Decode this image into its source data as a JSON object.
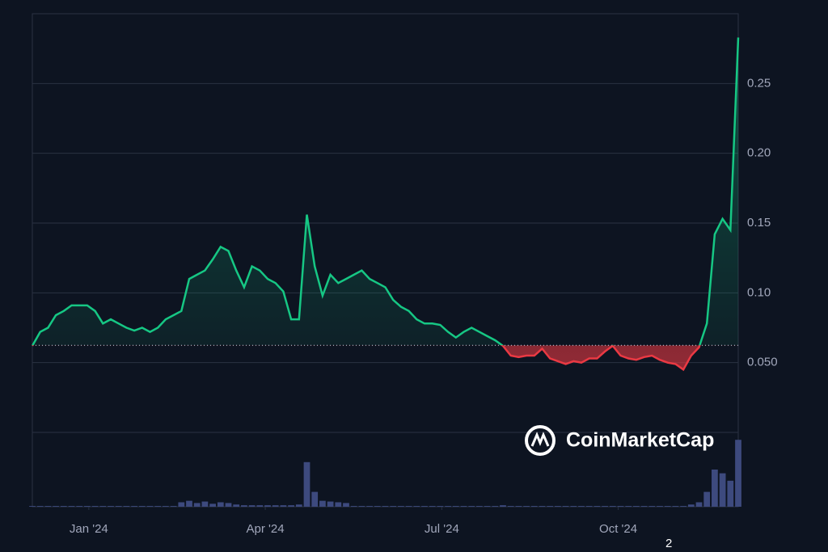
{
  "chart_data": {
    "type": "line",
    "watermark": "CoinMarketCap",
    "footnote": "2",
    "xlim": [
      0,
      90
    ],
    "xticks": [
      {
        "value": 7.2,
        "label": "Jan '24"
      },
      {
        "value": 29.7,
        "label": "Apr '24"
      },
      {
        "value": 52.2,
        "label": "Jul '24"
      },
      {
        "value": 74.7,
        "label": "Oct '24"
      }
    ],
    "ylim": [
      0,
      0.3
    ],
    "yticks": [
      {
        "value": 0.05,
        "label": "0.050"
      },
      {
        "value": 0.1,
        "label": "0.10"
      },
      0.15,
      {
        "value": 0.2,
        "label": "0.20"
      },
      0.25
    ],
    "baseline": 0.0624,
    "grid": true,
    "up_color": "#16c784",
    "down_color": "#ea3943",
    "series": [
      {
        "values": [
          0.062,
          0.072,
          0.075,
          0.084,
          0.087,
          0.091,
          0.091,
          0.091,
          0.087,
          0.078,
          0.081,
          0.078,
          0.075,
          0.073,
          0.075,
          0.072,
          0.075,
          0.081,
          0.084,
          0.087,
          0.11,
          0.113,
          0.116,
          0.124,
          0.133,
          0.13,
          0.116,
          0.104,
          0.119,
          0.116,
          0.11,
          0.107,
          0.101,
          0.081,
          0.081,
          0.156,
          0.119,
          0.098,
          0.113,
          0.107,
          0.11,
          0.113,
          0.116,
          0.11,
          0.107,
          0.104,
          0.095,
          0.09,
          0.087,
          0.081,
          0.078,
          0.078,
          0.077,
          0.072,
          0.068,
          0.072,
          0.075,
          0.072,
          0.069,
          0.066,
          0.062,
          0.055,
          0.054,
          0.055,
          0.055,
          0.06,
          0.053,
          0.051,
          0.049,
          0.051,
          0.05,
          0.053,
          0.053,
          0.058,
          0.062,
          0.055,
          0.053,
          0.052,
          0.054,
          0.055,
          0.052,
          0.05,
          0.049,
          0.045,
          0.055,
          0.061,
          0.078,
          0.142,
          0.153,
          0.145,
          0.283
        ]
      }
    ],
    "volume_ylim": [
      0,
      100
    ],
    "volume_color": "#3d4a7e",
    "volume": [
      1,
      1,
      1,
      1,
      1,
      1,
      1,
      1,
      1,
      1,
      1,
      1,
      1,
      1,
      1,
      1,
      1,
      1,
      1,
      6,
      8,
      5,
      7,
      4,
      6,
      5,
      3,
      2,
      2,
      2,
      2,
      2,
      2,
      2,
      3,
      60,
      20,
      8,
      7,
      6,
      5,
      1,
      1,
      1,
      1,
      1,
      1,
      1,
      1,
      1,
      1,
      1,
      1,
      1,
      1,
      1,
      1,
      1,
      1,
      1,
      2,
      1,
      1,
      1,
      1,
      1,
      1,
      1,
      1,
      1,
      1,
      1,
      1,
      1,
      1,
      1,
      1,
      1,
      1,
      1,
      1,
      1,
      1,
      1,
      3,
      6,
      20,
      50,
      45,
      35,
      90
    ]
  }
}
